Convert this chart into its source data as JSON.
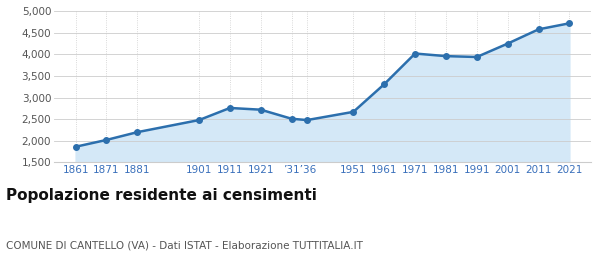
{
  "years": [
    1861,
    1871,
    1881,
    1901,
    1911,
    1921,
    1931,
    1936,
    1951,
    1961,
    1971,
    1981,
    1991,
    2001,
    2011,
    2021
  ],
  "population": [
    1862,
    2020,
    2200,
    2480,
    2760,
    2720,
    2510,
    2480,
    2670,
    3310,
    4020,
    3960,
    3940,
    4250,
    4580,
    4720
  ],
  "ylim": [
    1500,
    5000
  ],
  "yticks": [
    1500,
    2000,
    2500,
    3000,
    3500,
    4000,
    4500,
    5000
  ],
  "line_color": "#2c6fad",
  "fill_color": "#d4e8f7",
  "marker_size": 4,
  "line_width": 1.8,
  "background_color": "#ffffff",
  "plot_bg_color": "#ffffff",
  "grid_color_h": "#cccccc",
  "grid_color_v": "#cccccc",
  "title": "Popolazione residente ai censimenti",
  "subtitle": "COMUNE DI CANTELLO (VA) - Dati ISTAT - Elaborazione TUTTITALIA.IT",
  "title_fontsize": 11,
  "subtitle_fontsize": 7.5,
  "tick_color": "#3a70bb",
  "ytick_color": "#555555",
  "xlim": [
    1854,
    2028
  ]
}
